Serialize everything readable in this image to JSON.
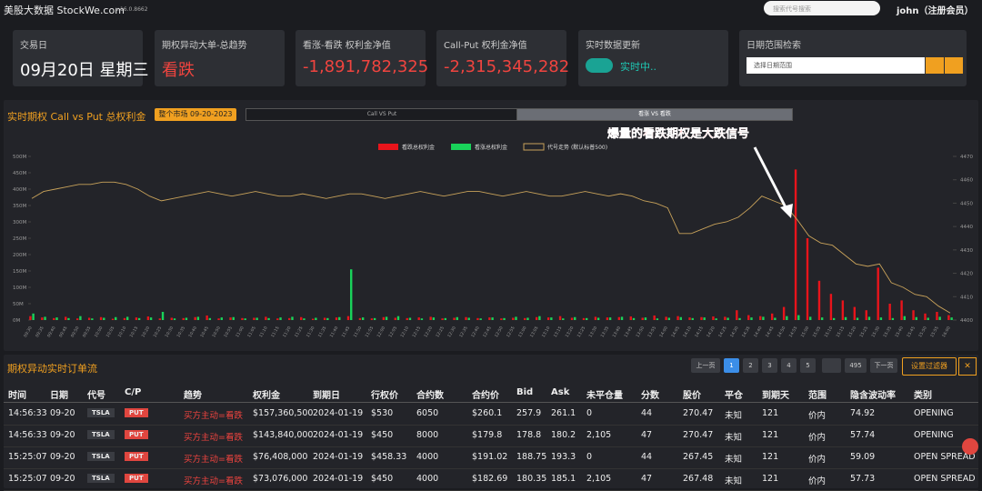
{
  "header": {
    "brand": "美股大数据 StockWe.com",
    "version": "v.16.0.8662",
    "search_placeholder": "搜索代号搜索",
    "user": "john（注册会员）"
  },
  "cards": [
    {
      "title": "交易日",
      "value": "09月20日 星期三"
    },
    {
      "title": "期权异动大单-总趋势",
      "value": "看跌"
    },
    {
      "title": "看涨-看跌 权利金净值",
      "value": "-1,891,782,325"
    },
    {
      "title": "Call-Put 权利金净值",
      "value": "-2,315,345,282"
    },
    {
      "title": "实时数据更新",
      "value": "实时中.."
    },
    {
      "title": "日期范围检索",
      "value": "选择日期范围"
    }
  ],
  "chart_panel": {
    "title": "实时期权 Call vs Put 总权利金",
    "market_button": "整个市场 09-20-2023",
    "tabs": [
      "Call VS Put",
      "看涨 VS 看跌"
    ]
  },
  "chart_data": {
    "type": "bar",
    "annotation": "爆量的看跌期权是大跌信号",
    "categories": [
      "09:30",
      "09:35",
      "09:40",
      "09:45",
      "09:50",
      "09:55",
      "10:00",
      "10:05",
      "10:10",
      "10:15",
      "10:20",
      "10:25",
      "10:30",
      "10:35",
      "10:40",
      "10:45",
      "10:50",
      "10:55",
      "11:00",
      "11:05",
      "11:10",
      "11:15",
      "11:20",
      "11:25",
      "11:30",
      "11:35",
      "11:40",
      "11:45",
      "11:50",
      "11:55",
      "12:00",
      "12:05",
      "12:10",
      "12:15",
      "12:20",
      "12:25",
      "12:30",
      "12:35",
      "12:40",
      "12:45",
      "12:50",
      "12:55",
      "13:00",
      "13:05",
      "13:10",
      "13:15",
      "13:20",
      "13:25",
      "13:30",
      "13:35",
      "13:40",
      "13:45",
      "13:50",
      "13:55",
      "14:00",
      "14:05",
      "14:10",
      "14:15",
      "14:20",
      "14:25",
      "14:30",
      "14:35",
      "14:40",
      "14:45",
      "14:50",
      "14:55",
      "15:00",
      "15:05",
      "15:10",
      "15:15",
      "15:20",
      "15:25",
      "15:30",
      "15:35",
      "15:40",
      "15:45",
      "15:50",
      "15:55",
      "16:00"
    ],
    "series": [
      {
        "name": "看跌总权利金",
        "color": "#e8141b",
        "values": [
          12,
          8,
          6,
          10,
          5,
          7,
          9,
          4,
          6,
          8,
          11,
          5,
          7,
          6,
          9,
          14,
          5,
          8,
          6,
          7,
          10,
          5,
          6,
          9,
          4,
          7,
          8,
          12,
          6,
          5,
          9,
          7,
          6,
          8,
          10,
          5,
          7,
          9,
          6,
          8,
          5,
          7,
          6,
          9,
          8,
          12,
          7,
          6,
          10,
          8,
          9,
          11,
          7,
          14,
          10,
          12,
          8,
          9,
          11,
          10,
          30,
          15,
          12,
          20,
          40,
          460,
          250,
          120,
          80,
          60,
          40,
          30,
          160,
          50,
          60,
          30,
          20,
          25,
          15
        ]
      },
      {
        "name": "看涨总权利金",
        "color": "#19d35a",
        "values": [
          20,
          10,
          8,
          6,
          12,
          5,
          7,
          9,
          10,
          6,
          8,
          25,
          5,
          7,
          10,
          6,
          8,
          9,
          5,
          7,
          6,
          8,
          10,
          5,
          7,
          6,
          9,
          155,
          8,
          6,
          10,
          12,
          7,
          5,
          8,
          6,
          9,
          7,
          5,
          8,
          6,
          10,
          7,
          12,
          8,
          5,
          9,
          6,
          7,
          8,
          10,
          6,
          8,
          5,
          7,
          9,
          6,
          8,
          5,
          7,
          6,
          8,
          10,
          7,
          12,
          15,
          10,
          8,
          6,
          9,
          7,
          10,
          8,
          6,
          12,
          9,
          7,
          10,
          8
        ]
      },
      {
        "name": "代号走势 (默认标普500)",
        "color": "#c8a25a",
        "type": "line",
        "axis": "y2",
        "values": [
          4452,
          4455,
          4456,
          4457,
          4458,
          4458,
          4459,
          4459,
          4458,
          4456,
          4453,
          4451,
          4452,
          4453,
          4454,
          4455,
          4454,
          4453,
          4454,
          4455,
          4454,
          4453,
          4453,
          4454,
          4453,
          4452,
          4453,
          4454,
          4454,
          4453,
          4452,
          4453,
          4454,
          4455,
          4454,
          4453,
          4454,
          4455,
          4455,
          4454,
          4453,
          4454,
          4455,
          4454,
          4453,
          4453,
          4454,
          4455,
          4454,
          4453,
          4454,
          4453,
          4451,
          4450,
          4448,
          4437,
          4437,
          4439,
          4441,
          4442,
          4444,
          4448,
          4453,
          4451,
          4449,
          4443,
          4436,
          4433,
          4432,
          4428,
          4424,
          4423,
          4424,
          4416,
          4414,
          4411,
          4410,
          4406,
          4403
        ]
      }
    ],
    "ylim": [
      0,
      500
    ],
    "yticks": [
      {
        "value": 0,
        "label": "0M"
      },
      {
        "value": 50,
        "label": "50M"
      },
      {
        "value": 100,
        "label": "100M"
      },
      {
        "value": 150,
        "label": "150M"
      },
      {
        "value": 200,
        "label": "200M"
      },
      {
        "value": 250,
        "label": "250M"
      },
      {
        "value": 300,
        "label": "300M"
      },
      {
        "value": 350,
        "label": "350M"
      },
      {
        "value": 400,
        "label": "400M"
      },
      {
        "value": 450,
        "label": "450M"
      },
      {
        "value": 500,
        "label": "500M"
      }
    ],
    "y2lim": [
      4400,
      4470
    ],
    "y2ticks": [
      4400,
      4410,
      4420,
      4430,
      4440,
      4450,
      4460,
      4470
    ],
    "grid": false
  },
  "table_panel": {
    "title": "期权异动实时订单流",
    "pagination": {
      "prev": "上一页",
      "pages": [
        "1",
        "2",
        "3",
        "4",
        "5",
        "495"
      ],
      "next": "下一页"
    },
    "filter": "设置过滤器"
  },
  "table": {
    "columns": [
      "时间",
      "日期",
      "代号",
      "C/P",
      "趋势",
      "权利金",
      "到期日",
      "行权价",
      "合约数",
      "合约价",
      "Bid",
      "Ask",
      "未平仓量",
      "分数",
      "股价",
      "平仓",
      "到期天",
      "范围",
      "隐含波动率",
      "类别"
    ],
    "rows": [
      [
        "14:56:33",
        "09-20",
        "TSLA",
        "PUT",
        "买方主动=看跌",
        "$157,360,500",
        "2024-01-19",
        "$530",
        "6050",
        "$260.1",
        "257.9",
        "261.1",
        "0",
        "44",
        "270.47",
        "未知",
        "121",
        "价内",
        "74.92",
        "OPENING"
      ],
      [
        "14:56:33",
        "09-20",
        "TSLA",
        "PUT",
        "买方主动=看跌",
        "$143,840,000",
        "2024-01-19",
        "$450",
        "8000",
        "$179.8",
        "178.8",
        "180.2",
        "2,105",
        "47",
        "270.47",
        "未知",
        "121",
        "价内",
        "57.74",
        "OPENING"
      ],
      [
        "15:25:07",
        "09-20",
        "TSLA",
        "PUT",
        "买方主动=看跌",
        "$76,408,000",
        "2024-01-19",
        "$458.33",
        "4000",
        "$191.02",
        "188.75",
        "193.3",
        "0",
        "44",
        "267.45",
        "未知",
        "121",
        "价内",
        "59.09",
        "OPEN SPREAD"
      ],
      [
        "15:25:07",
        "09-20",
        "TSLA",
        "PUT",
        "买方主动=看跌",
        "$73,076,000",
        "2024-01-19",
        "$450",
        "4000",
        "$182.69",
        "180.35",
        "185.1",
        "2,105",
        "47",
        "267.48",
        "未知",
        "121",
        "价内",
        "57.73",
        "OPEN SPREAD"
      ]
    ]
  }
}
